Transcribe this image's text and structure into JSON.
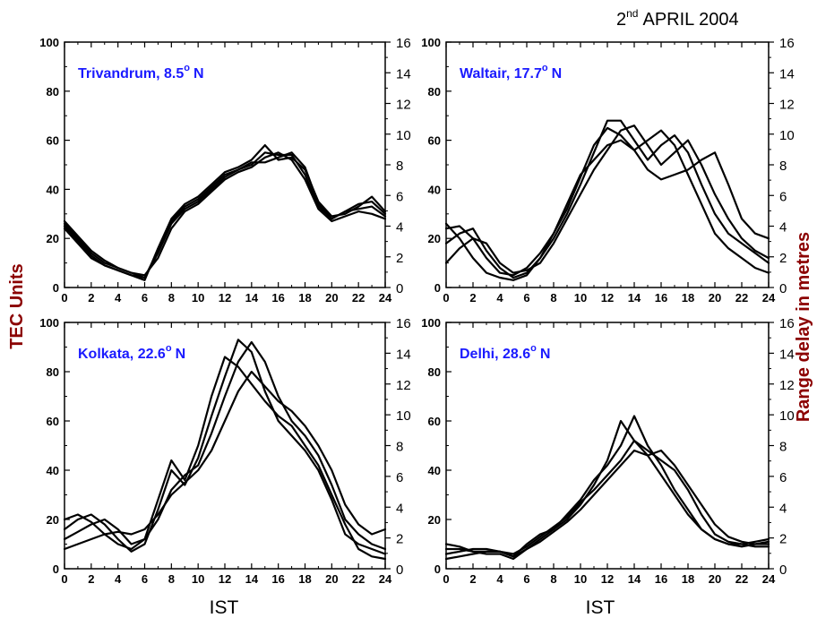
{
  "figure_title": {
    "text": "APRIL 2004",
    "day": "2",
    "sup": "nd"
  },
  "left_axis_label": "TEC Units",
  "right_axis_label": "Range delay in metres",
  "x_axis_label": "IST",
  "chart_data": [
    {
      "type": "line",
      "station": "Trivandrum, 8.5",
      "station_suffix": "N",
      "xlabel": "IST",
      "ylabel": "TEC Units",
      "y2label": "Range delay in metres",
      "xlim": [
        0,
        24
      ],
      "ylim": [
        0,
        100
      ],
      "y2lim": [
        0,
        16
      ],
      "xticks": [
        0,
        2,
        4,
        6,
        8,
        10,
        12,
        14,
        16,
        18,
        20,
        22,
        24
      ],
      "yticks": [
        0,
        20,
        40,
        60,
        80,
        100
      ],
      "y2ticks": [
        0,
        2,
        4,
        6,
        8,
        10,
        12,
        14,
        16
      ],
      "series": [
        {
          "x": [
            0,
            1,
            2,
            3,
            4,
            5,
            6,
            7,
            8,
            9,
            10,
            11,
            12,
            13,
            14,
            15,
            16,
            17,
            18,
            19,
            20,
            21,
            22,
            23,
            24
          ],
          "values": [
            27,
            21,
            15,
            11,
            8,
            6,
            4,
            14,
            26,
            32,
            35,
            40,
            45,
            48,
            50,
            55,
            54,
            54,
            46,
            33,
            28,
            31,
            32,
            33,
            29
          ]
        },
        {
          "x": [
            0,
            1,
            2,
            3,
            4,
            5,
            6,
            7,
            8,
            9,
            10,
            11,
            12,
            13,
            14,
            15,
            16,
            17,
            18,
            19,
            20,
            21,
            22,
            23,
            24
          ],
          "values": [
            25,
            19,
            13,
            9,
            7,
            5,
            3,
            16,
            28,
            34,
            37,
            42,
            47,
            49,
            52,
            58,
            52,
            53,
            48,
            35,
            29,
            30,
            33,
            37,
            31
          ]
        },
        {
          "x": [
            0,
            1,
            2,
            3,
            4,
            5,
            6,
            7,
            8,
            9,
            10,
            11,
            12,
            13,
            14,
            15,
            16,
            17,
            18,
            19,
            20,
            21,
            22,
            23,
            24
          ],
          "values": [
            26,
            20,
            14,
            10,
            8,
            6,
            5,
            12,
            24,
            31,
            34,
            39,
            44,
            47,
            49,
            53,
            55,
            52,
            44,
            32,
            27,
            29,
            31,
            30,
            28
          ]
        },
        {
          "x": [
            0,
            1,
            2,
            3,
            4,
            5,
            6,
            7,
            8,
            9,
            10,
            11,
            12,
            13,
            14,
            15,
            16,
            17,
            18,
            19,
            20,
            21,
            22,
            23,
            24
          ],
          "values": [
            24,
            18,
            12,
            9,
            7,
            5,
            4,
            15,
            27,
            33,
            36,
            41,
            46,
            48,
            51,
            51,
            53,
            55,
            49,
            34,
            28,
            31,
            34,
            35,
            30
          ]
        }
      ]
    },
    {
      "type": "line",
      "station": "Waltair, 17.7",
      "station_suffix": "N",
      "xlabel": "IST",
      "ylabel": "TEC Units",
      "y2label": "Range delay in metres",
      "xlim": [
        0,
        24
      ],
      "ylim": [
        0,
        100
      ],
      "y2lim": [
        0,
        16
      ],
      "xticks": [
        0,
        2,
        4,
        6,
        8,
        10,
        12,
        14,
        16,
        18,
        20,
        22,
        24
      ],
      "yticks": [
        0,
        20,
        40,
        60,
        80,
        100
      ],
      "y2ticks": [
        0,
        2,
        4,
        6,
        8,
        10,
        12,
        14,
        16
      ],
      "series": [
        {
          "x": [
            0,
            1,
            2,
            3,
            4,
            5,
            6,
            7,
            8,
            9,
            10,
            11,
            12,
            13,
            14,
            15,
            16,
            17,
            18,
            19,
            20,
            21,
            22,
            23,
            24
          ],
          "values": [
            24,
            25,
            20,
            12,
            6,
            5,
            8,
            14,
            22,
            32,
            45,
            58,
            65,
            62,
            56,
            60,
            64,
            58,
            46,
            34,
            22,
            16,
            12,
            8,
            6
          ]
        },
        {
          "x": [
            0,
            1,
            2,
            3,
            4,
            5,
            6,
            7,
            8,
            9,
            10,
            11,
            12,
            13,
            14,
            15,
            16,
            17,
            18,
            19,
            20,
            21,
            22,
            23,
            24
          ],
          "values": [
            18,
            22,
            24,
            15,
            8,
            4,
            6,
            12,
            20,
            30,
            42,
            55,
            68,
            68,
            60,
            52,
            58,
            62,
            55,
            42,
            30,
            22,
            18,
            14,
            10
          ]
        },
        {
          "x": [
            0,
            1,
            2,
            3,
            4,
            5,
            6,
            7,
            8,
            9,
            10,
            11,
            12,
            13,
            14,
            15,
            16,
            17,
            18,
            19,
            20,
            21,
            22,
            23,
            24
          ],
          "values": [
            10,
            16,
            20,
            18,
            10,
            6,
            7,
            10,
            18,
            28,
            38,
            48,
            56,
            64,
            66,
            58,
            50,
            55,
            60,
            50,
            38,
            28,
            20,
            15,
            12
          ]
        },
        {
          "x": [
            0,
            1,
            2,
            3,
            4,
            5,
            6,
            7,
            8,
            9,
            10,
            11,
            12,
            13,
            14,
            15,
            16,
            17,
            18,
            19,
            20,
            21,
            22,
            23,
            24
          ],
          "values": [
            26,
            20,
            12,
            6,
            4,
            3,
            5,
            12,
            22,
            34,
            46,
            52,
            58,
            60,
            56,
            48,
            44,
            46,
            48,
            52,
            55,
            42,
            28,
            22,
            20
          ]
        }
      ]
    },
    {
      "type": "line",
      "station": "Kolkata, 22.6",
      "station_suffix": "N",
      "xlabel": "IST",
      "ylabel": "TEC Units",
      "y2label": "Range delay in metres",
      "xlim": [
        0,
        24
      ],
      "ylim": [
        0,
        100
      ],
      "y2lim": [
        0,
        16
      ],
      "xticks": [
        0,
        2,
        4,
        6,
        8,
        10,
        12,
        14,
        16,
        18,
        20,
        22,
        24
      ],
      "yticks": [
        0,
        20,
        40,
        60,
        80,
        100
      ],
      "y2ticks": [
        0,
        2,
        4,
        6,
        8,
        10,
        12,
        14,
        16
      ],
      "series": [
        {
          "x": [
            0,
            1,
            2,
            3,
            4,
            5,
            6,
            7,
            8,
            9,
            10,
            11,
            12,
            13,
            14,
            15,
            16,
            17,
            18,
            19,
            20,
            21,
            22,
            23,
            24
          ],
          "values": [
            20,
            22,
            19,
            14,
            10,
            8,
            12,
            28,
            44,
            36,
            50,
            70,
            86,
            82,
            75,
            68,
            62,
            58,
            50,
            42,
            30,
            18,
            8,
            5,
            4
          ]
        },
        {
          "x": [
            0,
            1,
            2,
            3,
            4,
            5,
            6,
            7,
            8,
            9,
            10,
            11,
            12,
            13,
            14,
            15,
            16,
            17,
            18,
            19,
            20,
            21,
            22,
            23,
            24
          ],
          "values": [
            16,
            20,
            22,
            18,
            12,
            7,
            10,
            24,
            40,
            34,
            45,
            62,
            78,
            93,
            88,
            72,
            60,
            54,
            48,
            40,
            28,
            14,
            10,
            8,
            6
          ]
        },
        {
          "x": [
            0,
            1,
            2,
            3,
            4,
            5,
            6,
            7,
            8,
            9,
            10,
            11,
            12,
            13,
            14,
            15,
            16,
            17,
            18,
            19,
            20,
            21,
            22,
            23,
            24
          ],
          "values": [
            12,
            15,
            18,
            20,
            16,
            10,
            12,
            20,
            32,
            38,
            42,
            55,
            70,
            84,
            92,
            84,
            70,
            60,
            54,
            46,
            34,
            20,
            14,
            10,
            8
          ]
        },
        {
          "x": [
            0,
            1,
            2,
            3,
            4,
            5,
            6,
            7,
            8,
            9,
            10,
            11,
            12,
            13,
            14,
            15,
            16,
            17,
            18,
            19,
            20,
            21,
            22,
            23,
            24
          ],
          "values": [
            8,
            10,
            12,
            14,
            15,
            14,
            16,
            22,
            30,
            35,
            40,
            48,
            60,
            72,
            80,
            74,
            68,
            64,
            58,
            50,
            40,
            26,
            18,
            14,
            16
          ]
        }
      ]
    },
    {
      "type": "line",
      "station": "Delhi, 28.6",
      "station_suffix": "N",
      "xlabel": "IST",
      "ylabel": "TEC Units",
      "y2label": "Range delay in metres",
      "xlim": [
        0,
        24
      ],
      "ylim": [
        0,
        100
      ],
      "y2lim": [
        0,
        16
      ],
      "xticks": [
        0,
        2,
        4,
        6,
        8,
        10,
        12,
        14,
        16,
        18,
        20,
        22,
        24
      ],
      "yticks": [
        0,
        20,
        40,
        60,
        80,
        100
      ],
      "y2ticks": [
        0,
        2,
        4,
        6,
        8,
        10,
        12,
        14,
        16
      ],
      "series": [
        {
          "x": [
            0,
            1,
            2,
            3,
            4,
            5,
            6,
            7,
            8,
            9,
            10,
            11,
            12,
            13,
            14,
            15,
            16,
            17,
            18,
            19,
            20,
            21,
            22,
            23,
            24
          ],
          "values": [
            10,
            9,
            7,
            7,
            7,
            5,
            10,
            14,
            16,
            20,
            26,
            34,
            44,
            60,
            52,
            46,
            38,
            30,
            22,
            16,
            12,
            10,
            10,
            11,
            12
          ]
        },
        {
          "x": [
            0,
            1,
            2,
            3,
            4,
            5,
            6,
            7,
            8,
            9,
            10,
            11,
            12,
            13,
            14,
            15,
            16,
            17,
            18,
            19,
            20,
            21,
            22,
            23,
            24
          ],
          "values": [
            8,
            8,
            7,
            6,
            6,
            4,
            8,
            12,
            16,
            22,
            28,
            36,
            42,
            50,
            62,
            50,
            42,
            32,
            24,
            16,
            12,
            10,
            9,
            10,
            11
          ]
        },
        {
          "x": [
            0,
            1,
            2,
            3,
            4,
            5,
            6,
            7,
            8,
            9,
            10,
            11,
            12,
            13,
            14,
            15,
            16,
            17,
            18,
            19,
            20,
            21,
            22,
            23,
            24
          ],
          "values": [
            6,
            7,
            8,
            8,
            7,
            6,
            9,
            13,
            17,
            21,
            27,
            32,
            38,
            44,
            52,
            48,
            44,
            40,
            32,
            22,
            14,
            11,
            10,
            9,
            9
          ]
        },
        {
          "x": [
            0,
            1,
            2,
            3,
            4,
            5,
            6,
            7,
            8,
            9,
            10,
            11,
            12,
            13,
            14,
            15,
            16,
            17,
            18,
            19,
            20,
            21,
            22,
            23,
            24
          ],
          "values": [
            4,
            5,
            6,
            7,
            7,
            5,
            8,
            11,
            15,
            19,
            24,
            30,
            36,
            42,
            48,
            46,
            48,
            42,
            34,
            26,
            18,
            13,
            11,
            10,
            10
          ]
        }
      ]
    }
  ]
}
